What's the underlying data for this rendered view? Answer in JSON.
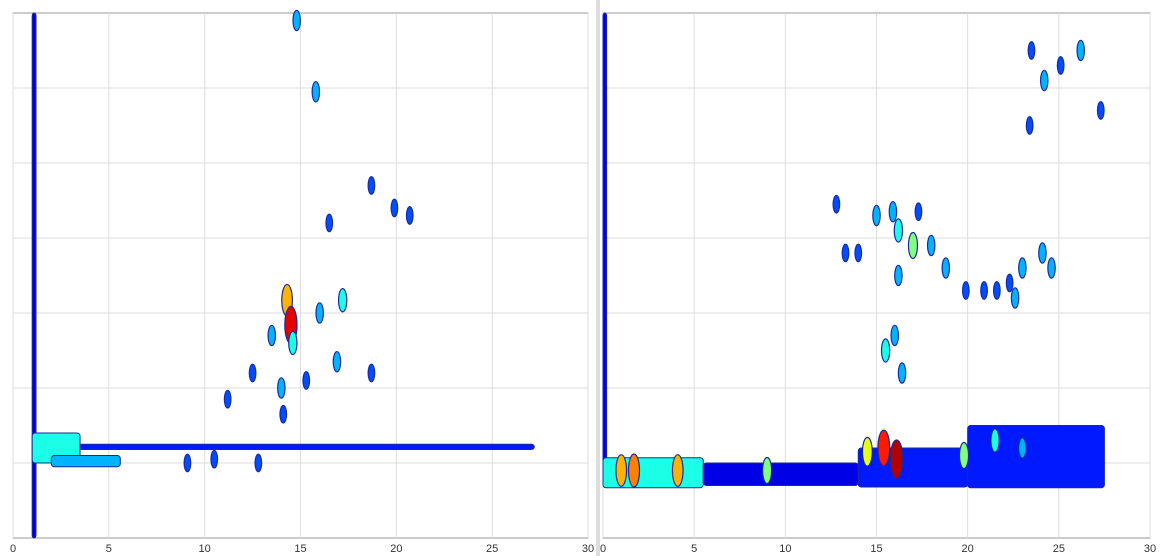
{
  "chart_data": [
    {
      "type": "contour",
      "colormap": "jet",
      "grid": true,
      "xlim": [
        0,
        30
      ],
      "xticks": [
        0,
        5,
        10,
        15,
        20,
        25,
        30
      ],
      "ylim": [
        0,
        7
      ],
      "streaks": {
        "x0": [
          1.0,
          1.0,
          1.0,
          2.0
        ],
        "x1": [
          1.2,
          27.2,
          3.5,
          5.6
        ],
        "y0": [
          0,
          1.18,
          1.0,
          0.95
        ],
        "y1": [
          7,
          1.25,
          1.4,
          1.1
        ],
        "intensity": [
          0.1,
          0.15,
          0.4,
          0.3
        ]
      },
      "spots": {
        "x": [
          14.8,
          15.8,
          14.3,
          14.5,
          17.2,
          13.5,
          16.9,
          12.5,
          14.0,
          11.2,
          14.1,
          18.7,
          16.5,
          18.7,
          19.9,
          20.7,
          10.5,
          9.1,
          12.8,
          15.3,
          16.0,
          14.6
        ],
        "y": [
          6.9,
          5.95,
          3.17,
          2.84,
          3.17,
          2.7,
          2.35,
          2.2,
          2.0,
          1.85,
          1.65,
          2.2,
          4.2,
          4.7,
          4.4,
          4.3,
          1.05,
          1.0,
          1.0,
          2.1,
          3.0,
          2.6
        ],
        "intensity": [
          0.3,
          0.3,
          0.7,
          0.9,
          0.4,
          0.3,
          0.3,
          0.2,
          0.3,
          0.2,
          0.2,
          0.2,
          0.2,
          0.2,
          0.2,
          0.2,
          0.2,
          0.2,
          0.2,
          0.2,
          0.3,
          0.4
        ]
      }
    },
    {
      "type": "contour",
      "colormap": "jet",
      "grid": true,
      "xlim": [
        0,
        30
      ],
      "xticks": [
        0,
        5,
        10,
        15,
        20,
        25,
        30
      ],
      "ylim": [
        0,
        7
      ],
      "streaks": {
        "x0": [
          0,
          0,
          5.5,
          14,
          20
        ],
        "x1": [
          0.2,
          5.5,
          14,
          20,
          27.5
        ],
        "y0": [
          0.7,
          0.67,
          0.7,
          0.68,
          0.67
        ],
        "y1": [
          7,
          1.07,
          1.0,
          1.2,
          1.5
        ],
        "intensity": [
          0.12,
          0.4,
          0.1,
          0.15,
          0.15
        ]
      },
      "spots": {
        "x": [
          15.4,
          16.1,
          14.5,
          1.0,
          1.7,
          4.1,
          9.0,
          19.8,
          21.5,
          23.0,
          15.5,
          16.0,
          16.2,
          16.2,
          17.0,
          18.0,
          15.0,
          14.0,
          13.3,
          12.8,
          15.9,
          17.3,
          18.8,
          22.6,
          23.0,
          24.1,
          24.6,
          20.9,
          21.6,
          22.3,
          19.9,
          23.4,
          23.5,
          24.2,
          25.1,
          26.2,
          27.3,
          16.4
        ],
        "y": [
          1.2,
          1.05,
          1.15,
          0.9,
          0.9,
          0.9,
          0.9,
          1.1,
          1.3,
          1.2,
          2.5,
          2.7,
          3.5,
          4.1,
          3.9,
          3.9,
          4.3,
          3.8,
          3.8,
          4.45,
          4.35,
          4.35,
          3.6,
          3.2,
          3.6,
          3.8,
          3.6,
          3.3,
          3.3,
          3.4,
          3.3,
          5.5,
          6.5,
          6.1,
          6.3,
          6.5,
          5.7,
          2.2
        ],
        "intensity": [
          0.85,
          0.95,
          0.6,
          0.7,
          0.75,
          0.7,
          0.5,
          0.5,
          0.4,
          0.3,
          0.4,
          0.3,
          0.3,
          0.4,
          0.5,
          0.3,
          0.3,
          0.2,
          0.2,
          0.2,
          0.3,
          0.2,
          0.3,
          0.3,
          0.3,
          0.3,
          0.3,
          0.2,
          0.2,
          0.2,
          0.2,
          0.2,
          0.2,
          0.3,
          0.2,
          0.3,
          0.2,
          0.3
        ]
      }
    }
  ]
}
